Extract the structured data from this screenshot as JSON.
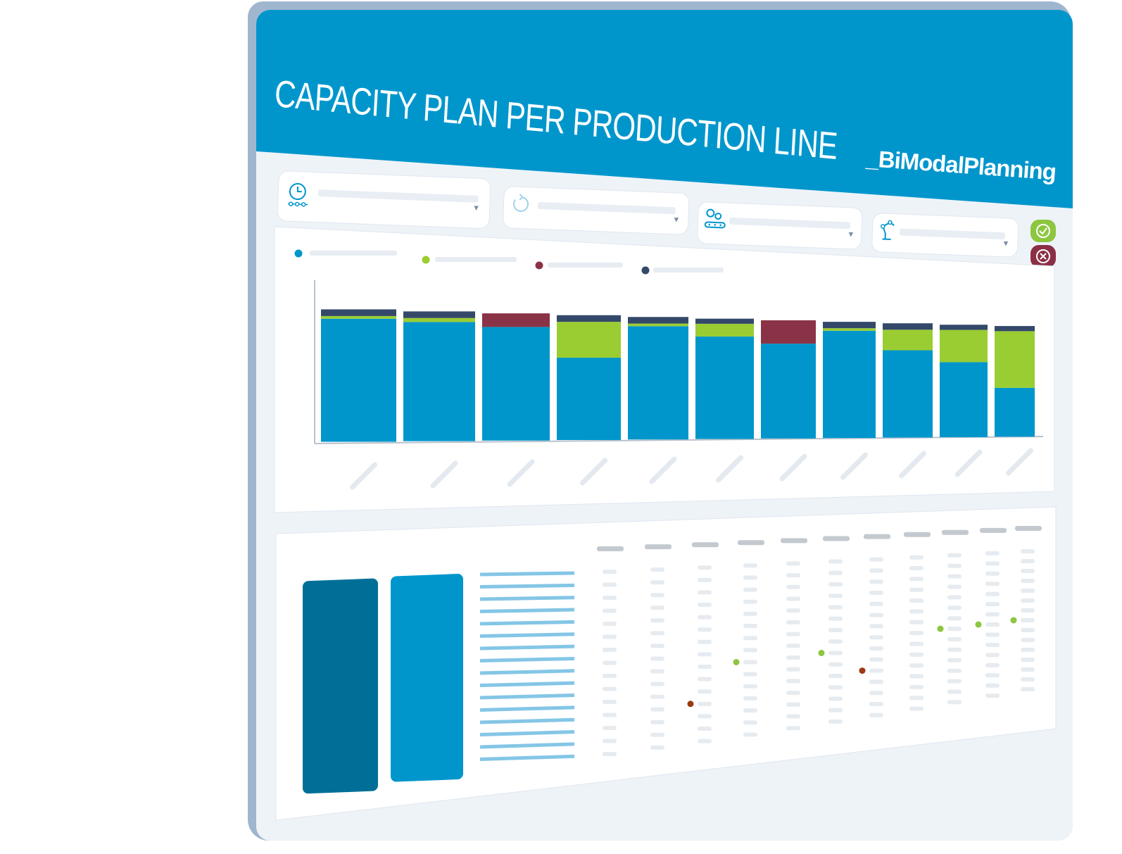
{
  "header": {
    "title": "CAPACITY PLAN PER PRODUCTION LINE",
    "brand": "_BiModalPlanning"
  },
  "filters": [
    {
      "icon": "clock-timeline-icon",
      "value": ""
    },
    {
      "icon": "refresh-cycle-icon",
      "value": ""
    },
    {
      "icon": "conveyor-gears-icon",
      "value": ""
    },
    {
      "icon": "robot-arm-icon",
      "value": ""
    }
  ],
  "actions": {
    "confirm": {
      "icon": "check-icon",
      "color": "#8dc63f"
    },
    "cancel": {
      "icon": "close-icon",
      "color": "#8b2f45"
    }
  },
  "colors": {
    "brand_blue": "#0096cc",
    "dark_teal": "#006f98",
    "green": "#9acd32",
    "maroon": "#8b3346",
    "navy": "#34496a",
    "light_bars": "#84c6e6"
  },
  "chart_data": {
    "type": "bar",
    "stacked": true,
    "categories": [
      "",
      "",
      "",
      "",
      "",
      "",
      "",
      "",
      "",
      "",
      ""
    ],
    "series": [
      {
        "color": "#0096cc",
        "values": [
          92,
          90,
          92,
          62,
          86,
          80,
          85,
          84,
          68,
          58,
          38
        ]
      },
      {
        "color": "#9acd32",
        "values": [
          2,
          3,
          0,
          27,
          2,
          10,
          0,
          2,
          16,
          25,
          44
        ]
      },
      {
        "color": "#8b3346",
        "values": [
          0,
          0,
          11,
          0,
          0,
          0,
          21,
          0,
          0,
          0,
          0
        ]
      },
      {
        "color": "#34496a",
        "values": [
          5,
          5,
          0,
          5,
          5,
          4,
          0,
          5,
          5,
          4,
          4
        ]
      }
    ],
    "legend_placement": "top-left",
    "grid": false
  },
  "table": {
    "columns": 11,
    "rows": 15,
    "markers": [
      {
        "col": 2,
        "row": 11,
        "color": "#9b3a10"
      },
      {
        "col": 3,
        "row": 8,
        "color": "#8dc63f"
      },
      {
        "col": 5,
        "row": 8,
        "color": "#8dc63f"
      },
      {
        "col": 6,
        "row": 10,
        "color": "#9b3a10"
      },
      {
        "col": 8,
        "row": 7,
        "color": "#8dc63f"
      },
      {
        "col": 9,
        "row": 7,
        "color": "#8dc63f"
      },
      {
        "col": 10,
        "row": 7,
        "color": "#8dc63f"
      }
    ]
  }
}
